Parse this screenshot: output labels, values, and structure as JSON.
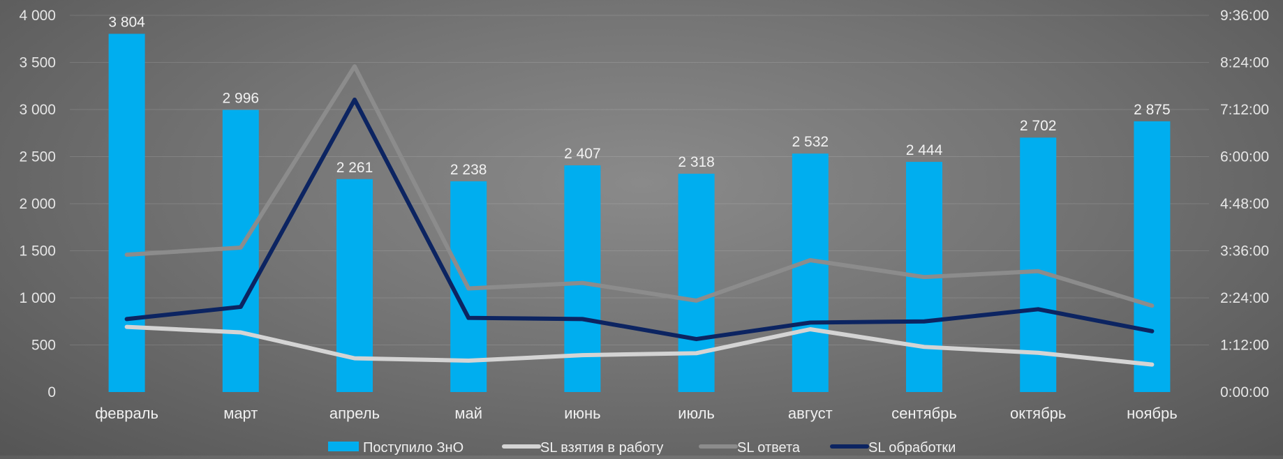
{
  "chart_data": {
    "type": "bar",
    "categories": [
      "февраль",
      "март",
      "апрель",
      "май",
      "июнь",
      "июль",
      "август",
      "сентябрь",
      "октябрь",
      "ноябрь"
    ],
    "y_left": {
      "range": [
        0,
        4000
      ],
      "ticks": [
        0,
        500,
        1000,
        1500,
        2000,
        2500,
        3000,
        3500,
        4000
      ],
      "tick_labels": [
        "0",
        "500",
        "1 000",
        "1 500",
        "2 000",
        "2 500",
        "3 000",
        "3 500",
        "4 000"
      ]
    },
    "y_right": {
      "range_hours": [
        0,
        9.6
      ],
      "ticks_hours": [
        0,
        1.2,
        2.4,
        3.6,
        4.8,
        6.0,
        7.2,
        8.4,
        9.6
      ],
      "tick_labels": [
        "0:00:00",
        "1:12:00",
        "2:24:00",
        "3:36:00",
        "4:48:00",
        "6:00:00",
        "7:12:00",
        "8:24:00",
        "9:36:00"
      ]
    },
    "bars": {
      "name": "Поступило ЗнО",
      "color": "#00aeef",
      "values": [
        3804,
        2996,
        2261,
        2238,
        2407,
        2318,
        2532,
        2444,
        2702,
        2875
      ],
      "value_labels": [
        "3 804",
        "2 996",
        "2 261",
        "2 238",
        "2 407",
        "2 318",
        "2 532",
        "2 444",
        "2 702",
        "2 875"
      ]
    },
    "lines": [
      {
        "name": "SL взятия в работу",
        "color": "#d4d4d4",
        "axis": "right",
        "values_hours": [
          1.66,
          1.52,
          0.86,
          0.8,
          0.94,
          0.99,
          1.6,
          1.15,
          1.0,
          0.7
        ]
      },
      {
        "name": "SL ответа",
        "color": "#8c8c8c",
        "axis": "right",
        "values_hours": [
          3.5,
          3.68,
          8.3,
          2.64,
          2.78,
          2.33,
          3.36,
          2.93,
          3.08,
          2.2
        ]
      },
      {
        "name": "SL обработки",
        "color": "#0c2461",
        "axis": "right",
        "values_hours": [
          1.86,
          2.17,
          7.45,
          1.89,
          1.86,
          1.35,
          1.77,
          1.8,
          2.11,
          1.55
        ]
      }
    ],
    "legend_position": "bottom",
    "grid": "horizontal"
  }
}
